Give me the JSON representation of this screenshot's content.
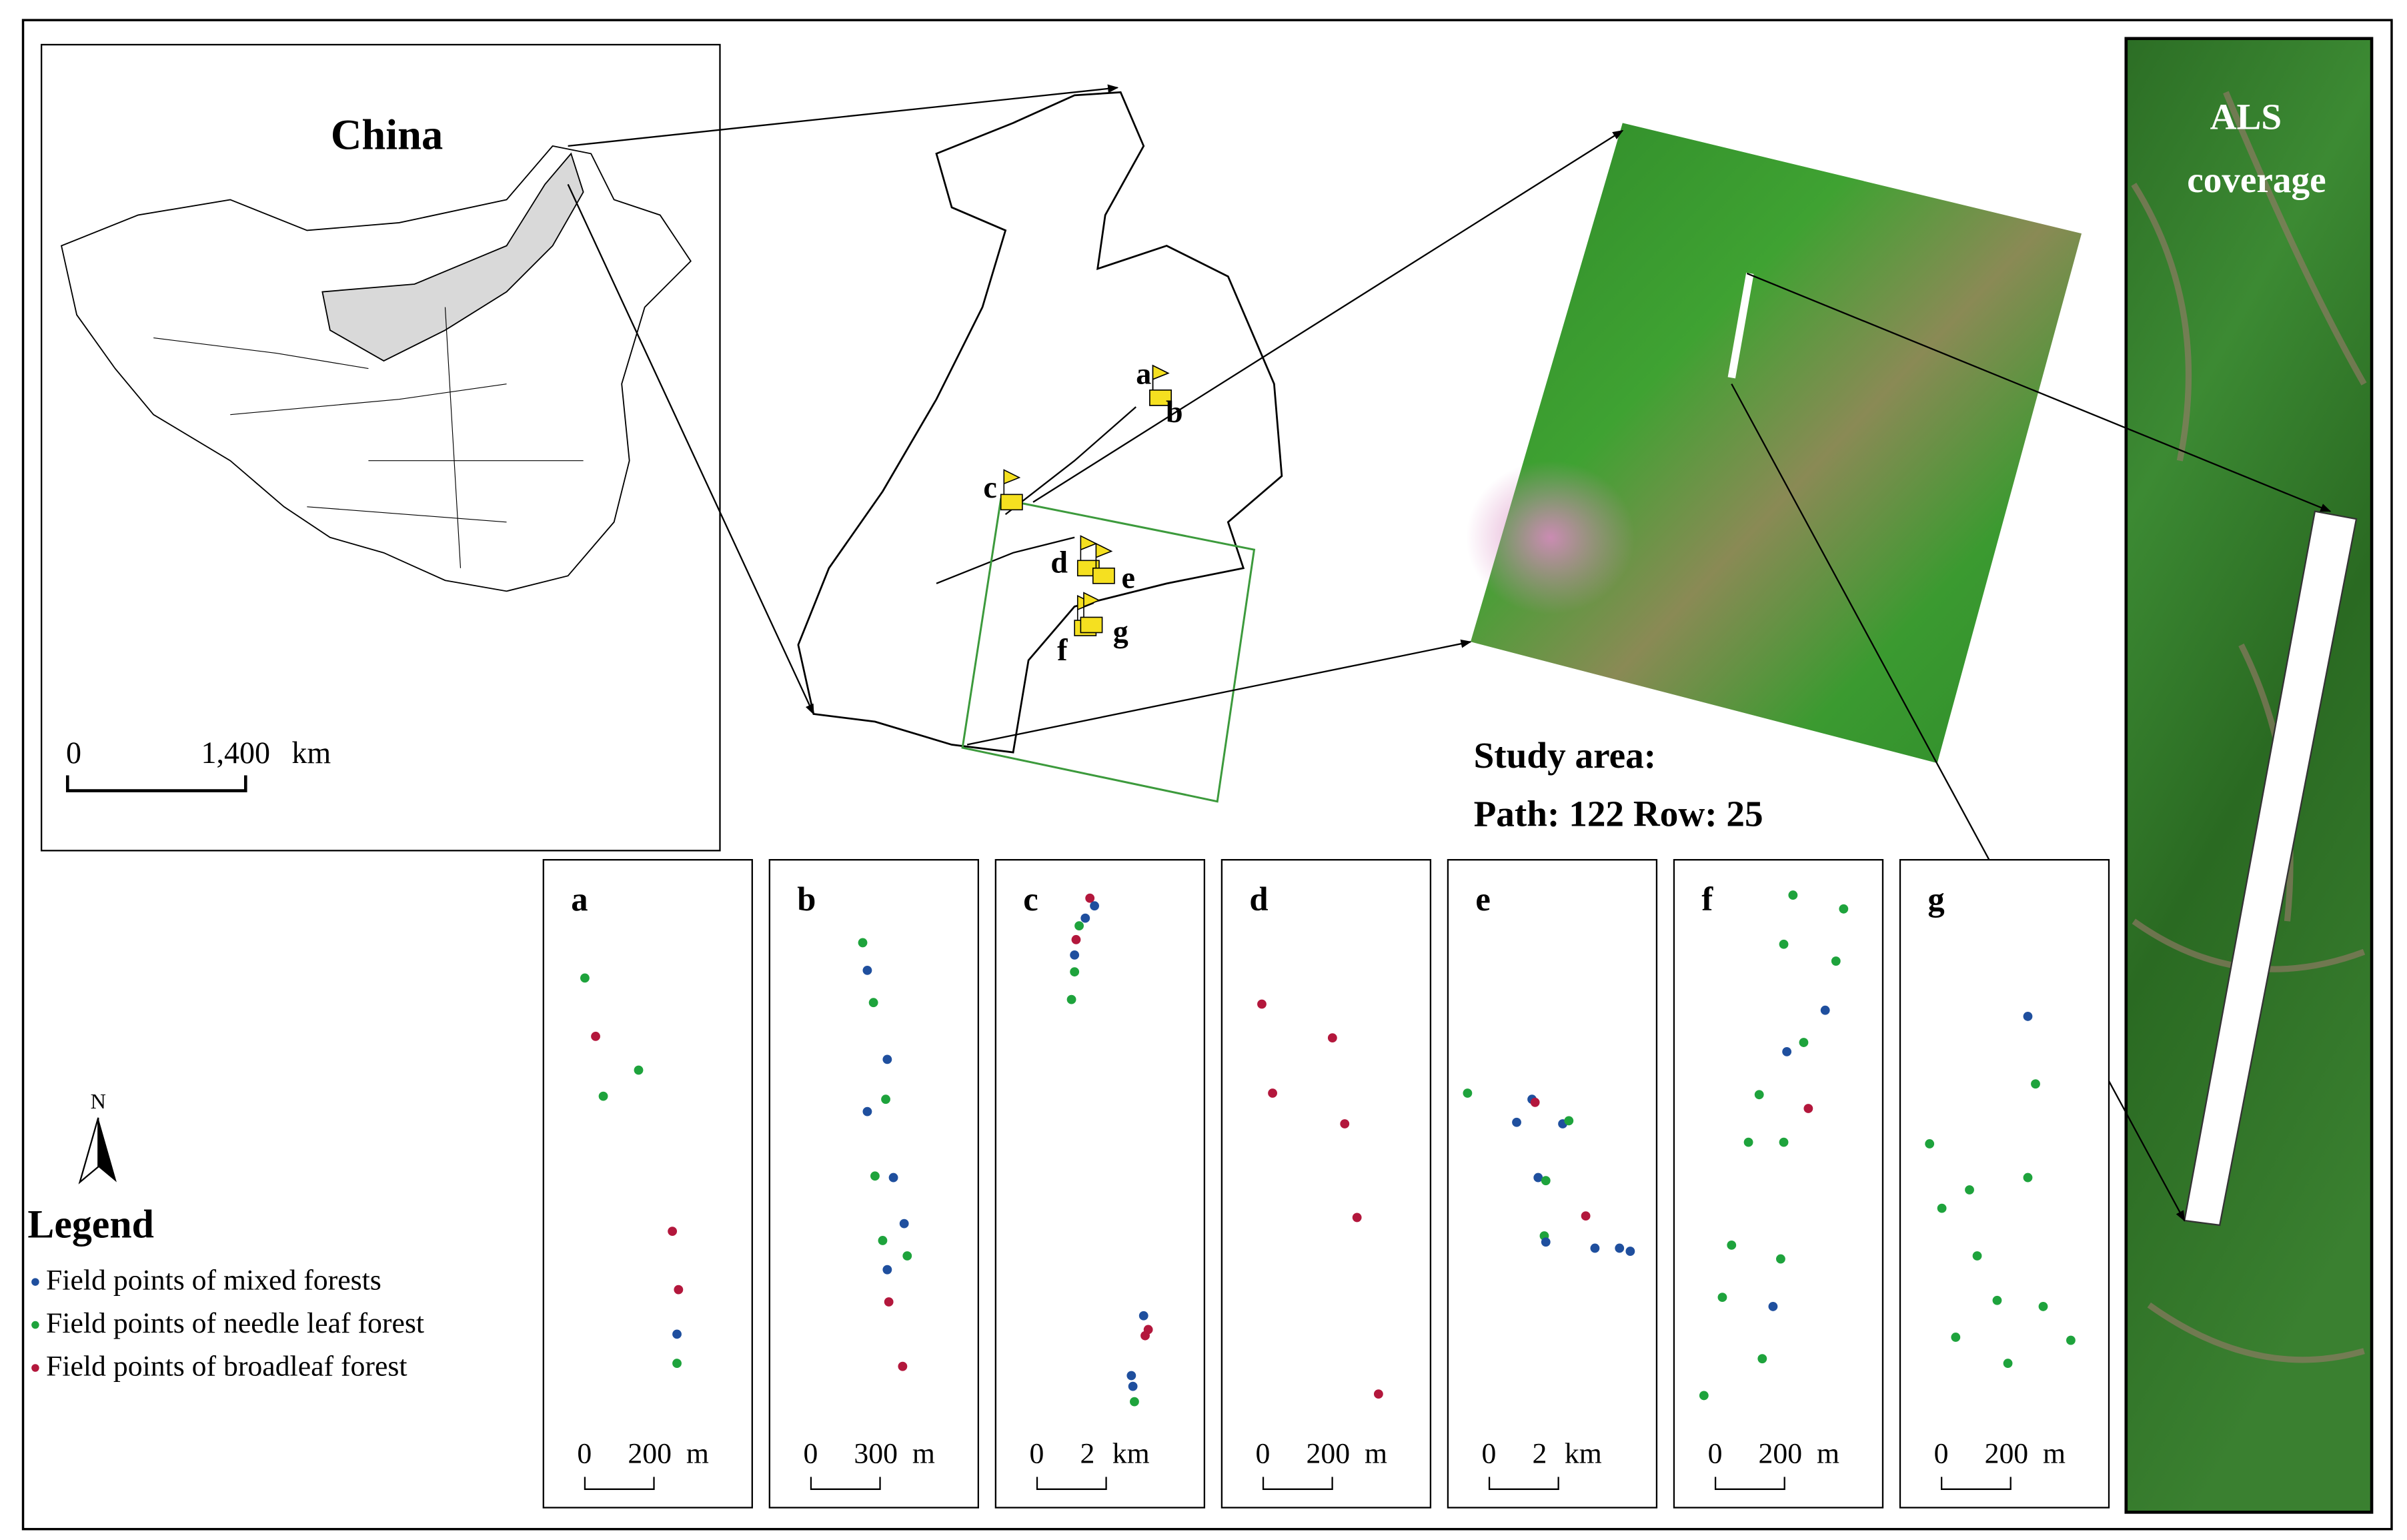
{
  "inset": {
    "title": "China",
    "scale": {
      "zero": "0",
      "value": "1,400",
      "unit": "km"
    }
  },
  "site_labels": [
    "a",
    "b",
    "c",
    "d",
    "e",
    "f",
    "g"
  ],
  "study_area": {
    "title": "Study area:",
    "path_row": "Path: 122  Row: 25"
  },
  "als_label": [
    "ALS",
    "coverage"
  ],
  "north": "N",
  "legend": {
    "title": "Legend",
    "items": [
      {
        "label": "Field points of mixed forests",
        "color": "#1f4f9e"
      },
      {
        "label": "Field points of needle leaf forest",
        "color": "#1ea33c"
      },
      {
        "label": "Field points of broadleaf forest",
        "color": "#b3173c"
      }
    ]
  },
  "panels": [
    {
      "label": "a",
      "scale": {
        "zero": "0",
        "value": "200",
        "unit": "m"
      }
    },
    {
      "label": "b",
      "scale": {
        "zero": "0",
        "value": "300",
        "unit": "m"
      }
    },
    {
      "label": "c",
      "scale": {
        "zero": "0",
        "value": "2",
        "unit": "km"
      }
    },
    {
      "label": "d",
      "scale": {
        "zero": "0",
        "value": "200",
        "unit": "m"
      }
    },
    {
      "label": "e",
      "scale": {
        "zero": "0",
        "value": "2",
        "unit": "km"
      }
    },
    {
      "label": "f",
      "scale": {
        "zero": "0",
        "value": "200",
        "unit": "m"
      }
    },
    {
      "label": "g",
      "scale": {
        "zero": "0",
        "value": "200",
        "unit": "m"
      }
    }
  ]
}
